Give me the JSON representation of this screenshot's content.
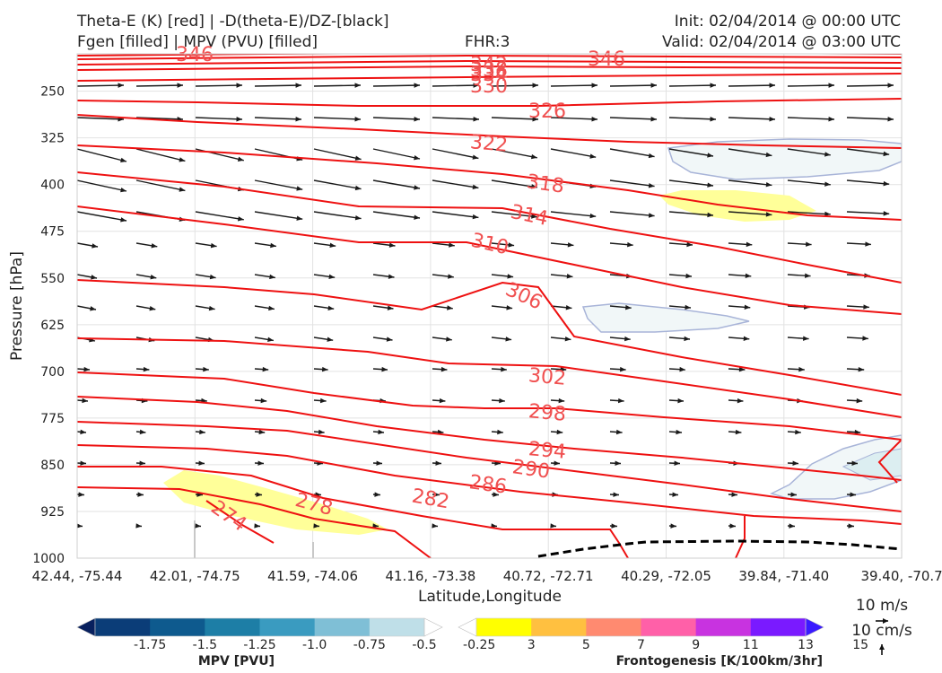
{
  "header": {
    "title_left_1": "Theta-E (K) [red] | -D(theta-E)/DZ-[black]",
    "title_left_2": "Fgen [filled] | MPV (PVU) [filled]",
    "fhr": "FHR:3",
    "init": "Init: 02/04/2014 @ 00:00 UTC",
    "valid": "Valid: 02/04/2014 @ 03:00 UTC"
  },
  "chart_data": {
    "type": "cross-section",
    "xlabel": "Latitude,Longitude",
    "ylabel": "Pressure [hPa]",
    "x_ticks": [
      "42.44, -75.44",
      "42.01, -74.75",
      "41.59, -74.06",
      "41.16, -73.38",
      "40.72, -72.71",
      "40.29, -72.05",
      "39.84, -71.40",
      "39.40, -70.7"
    ],
    "y_ticks": [
      250,
      325,
      400,
      475,
      550,
      625,
      700,
      775,
      850,
      925,
      1000
    ],
    "ylim": [
      1000,
      190
    ],
    "grid": true,
    "theta_e_contours": [
      {
        "level": 346,
        "label": "346"
      },
      {
        "level": 342,
        "label": "342"
      },
      {
        "level": 338,
        "label": "338"
      },
      {
        "level": 334,
        "label": "334"
      },
      {
        "level": 330,
        "label": "330"
      },
      {
        "level": 326,
        "label": "326"
      },
      {
        "level": 322,
        "label": "322"
      },
      {
        "level": 318,
        "label": "318"
      },
      {
        "level": 314,
        "label": "314"
      },
      {
        "level": 310,
        "label": "310"
      },
      {
        "level": 306,
        "label": "306"
      },
      {
        "level": 302,
        "label": "302"
      },
      {
        "level": 298,
        "label": "298"
      },
      {
        "level": 294,
        "label": "294"
      },
      {
        "level": 290,
        "label": "290"
      },
      {
        "level": 286,
        "label": "286"
      },
      {
        "level": 282,
        "label": "282"
      },
      {
        "level": 278,
        "label": "278"
      },
      {
        "level": 274,
        "label": "274"
      }
    ],
    "mpv_colorbar": {
      "label": "MPV [PVU]",
      "ticks": [
        "-1.75",
        "-1.5",
        "-1.25",
        "-1.0",
        "-0.75",
        "-0.5",
        "-0.25"
      ],
      "colors": [
        "#08205e",
        "#0b3d78",
        "#0e5a8e",
        "#1d7ea6",
        "#3a9bc0",
        "#7fbfd6",
        "#bfdfe8",
        "#ffffff"
      ]
    },
    "fgen_colorbar": {
      "label": "Frontogenesis [K/100km/3hr]",
      "ticks": [
        "3",
        "5",
        "7",
        "9",
        "11",
        "13",
        "15"
      ],
      "colors": [
        "#ffffff",
        "#ffff00",
        "#ffc040",
        "#ff8a70",
        "#ff60a8",
        "#c833e0",
        "#7a1aff",
        "#3a1aff"
      ]
    },
    "wind_reference": {
      "horizontal": "10 m/s",
      "vertical": "10 cm/s"
    }
  }
}
